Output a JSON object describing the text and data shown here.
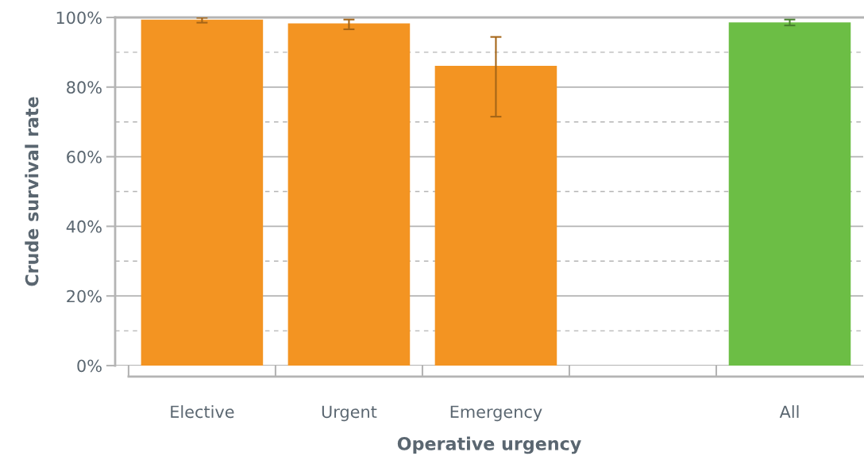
{
  "chart_data": {
    "type": "bar",
    "xlabel": "Operative urgency",
    "ylabel": "Crude survival rate",
    "categories": [
      "Elective",
      "Urgent",
      "Emergency",
      null,
      "All"
    ],
    "values": [
      99.4,
      98.3,
      86.1,
      null,
      98.6
    ],
    "colors": [
      "#f39422",
      "#f39422",
      "#f39422",
      null,
      "#6cbe45"
    ],
    "errors": [
      [
        98.5,
        99.9
      ],
      [
        96.6,
        99.4
      ],
      [
        71.5,
        94.4
      ],
      null,
      [
        97.7,
        99.4
      ]
    ],
    "ylim": [
      0,
      100
    ],
    "yticks": [
      {
        "value": 0,
        "label": "0%"
      },
      {
        "value": 10,
        "label": null
      },
      {
        "value": 20,
        "label": "20%"
      },
      {
        "value": 30,
        "label": null
      },
      {
        "value": 40,
        "label": "40%"
      },
      {
        "value": 50,
        "label": null
      },
      {
        "value": 60,
        "label": "60%"
      },
      {
        "value": 70,
        "label": null
      },
      {
        "value": 80,
        "label": "80%"
      },
      {
        "value": 90,
        "label": null
      },
      {
        "value": 100,
        "label": "100%"
      }
    ],
    "grid": "y",
    "legend": false
  }
}
